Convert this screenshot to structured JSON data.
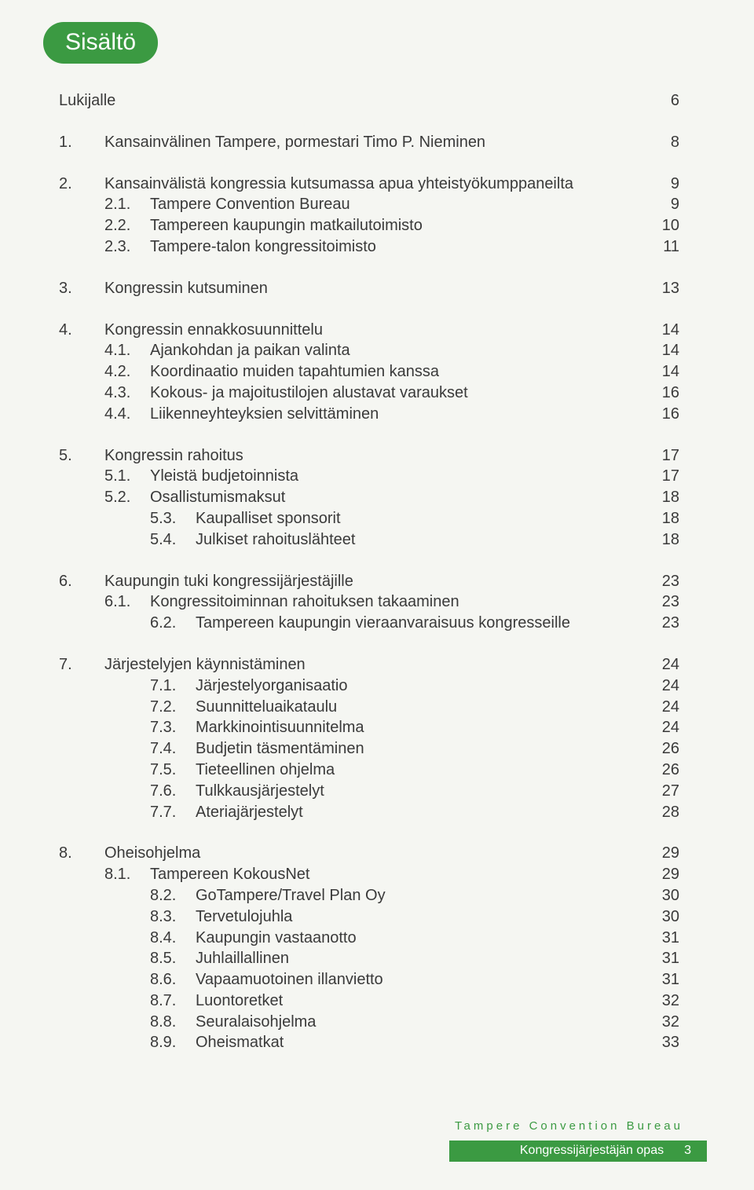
{
  "colors": {
    "accent": "#3b9a42",
    "text": "#3a3a3a",
    "background": "#f5f6f2"
  },
  "badge": "Sisältö",
  "toc": [
    {
      "rows": [
        {
          "title": "Lukijalle",
          "page": "6"
        }
      ]
    },
    {
      "rows": [
        {
          "num": "1.",
          "title": "Kansainvälinen Tampere, pormestari Timo P. Nieminen",
          "page": "8"
        }
      ]
    },
    {
      "rows": [
        {
          "num": "2.",
          "title": "Kansainvälistä kongressia kutsumassa apua yhteistyökumppaneilta",
          "page": "9"
        },
        {
          "indent": 1,
          "num": "2.1.",
          "title": "Tampere Convention Bureau",
          "page": "9"
        },
        {
          "indent": 1,
          "num": "2.2.",
          "title": "Tampereen kaupungin matkailutoimisto",
          "page": "10"
        },
        {
          "indent": 1,
          "num": "2.3.",
          "title": "Tampere-talon kongressitoimisto",
          "page": "11"
        }
      ]
    },
    {
      "rows": [
        {
          "num": "3.",
          "title": "Kongressin kutsuminen",
          "page": "13"
        }
      ]
    },
    {
      "rows": [
        {
          "num": "4.",
          "title": "Kongressin ennakkosuunnittelu",
          "page": "14"
        },
        {
          "indent": 1,
          "num": "4.1.",
          "title": "Ajankohdan ja paikan valinta",
          "page": "14"
        },
        {
          "indent": 1,
          "num": "4.2.",
          "title": "Koordinaatio muiden tapahtumien kanssa",
          "page": "14"
        },
        {
          "indent": 1,
          "num": "4.3.",
          "title": "Kokous- ja majoitustilojen alustavat varaukset",
          "page": "16"
        },
        {
          "indent": 1,
          "num": "4.4.",
          "title": "Liikenneyhteyksien selvittäminen",
          "page": "16"
        }
      ]
    },
    {
      "rows": [
        {
          "num": "5.",
          "title": "Kongressin rahoitus",
          "page": "17"
        },
        {
          "indent": 1,
          "num": "5.1.",
          "title": "Yleistä budjetoinnista",
          "page": "17"
        },
        {
          "indent": 1,
          "num": "5.2.",
          "title": "Osallistumismaksut",
          "page": "18"
        },
        {
          "indent": 2,
          "num": "5.3.",
          "title": "Kaupalliset sponsorit",
          "page": "18"
        },
        {
          "indent": 2,
          "num": "5.4.",
          "title": "Julkiset rahoituslähteet",
          "page": "18"
        }
      ]
    },
    {
      "rows": [
        {
          "num": "6.",
          "title": "Kaupungin tuki kongressijärjestäjille",
          "page": "23"
        },
        {
          "indent": 1,
          "num": "6.1.",
          "title": "Kongressitoiminnan rahoituksen takaaminen",
          "page": "23"
        },
        {
          "indent": 2,
          "num": "6.2.",
          "title": "Tampereen kaupungin vieraanvaraisuus kongresseille",
          "page": "23"
        }
      ]
    },
    {
      "rows": [
        {
          "num": "7.",
          "title": "Järjestelyjen käynnistäminen",
          "page": "24"
        },
        {
          "indent": 2,
          "num": "7.1.",
          "title": "Järjestelyorganisaatio",
          "page": "24"
        },
        {
          "indent": 2,
          "num": "7.2.",
          "title": "Suunnitteluaikataulu",
          "page": "24"
        },
        {
          "indent": 2,
          "num": "7.3.",
          "title": "Markkinointisuunnitelma",
          "page": "24"
        },
        {
          "indent": 2,
          "num": "7.4.",
          "title": "Budjetin täsmentäminen",
          "page": "26"
        },
        {
          "indent": 2,
          "num": "7.5.",
          "title": "Tieteellinen ohjelma",
          "page": "26"
        },
        {
          "indent": 2,
          "num": "7.6.",
          "title": "Tulkkausjärjestelyt",
          "page": "27"
        },
        {
          "indent": 2,
          "num": "7.7.",
          "title": "Ateriajärjestelyt",
          "page": "28"
        }
      ]
    },
    {
      "rows": [
        {
          "num": "8.",
          "title": "Oheisohjelma",
          "page": "29"
        },
        {
          "indent": 1,
          "num": "8.1.",
          "title": "Tampereen KokousNet",
          "page": "29"
        },
        {
          "indent": 2,
          "num": "8.2.",
          "title": "GoTampere/Travel Plan Oy",
          "page": "30"
        },
        {
          "indent": 2,
          "num": "8.3.",
          "title": "Tervetulojuhla",
          "page": "30"
        },
        {
          "indent": 2,
          "num": "8.4.",
          "title": "Kaupungin vastaanotto",
          "page": "31"
        },
        {
          "indent": 2,
          "num": "8.5.",
          "title": "Juhlaillallinen",
          "page": "31"
        },
        {
          "indent": 2,
          "num": "8.6.",
          "title": "Vapaamuotoinen illanvietto",
          "page": "31"
        },
        {
          "indent": 2,
          "num": "8.7.",
          "title": "Luontoretket",
          "page": "32"
        },
        {
          "indent": 2,
          "num": "8.8.",
          "title": "Seuralaisohjelma",
          "page": "32"
        },
        {
          "indent": 2,
          "num": "8.9.",
          "title": "Oheismatkat",
          "page": "33"
        }
      ]
    }
  ],
  "footer": {
    "top": "Tampere Convention Bureau",
    "bar_text": "Kongressijärjestäjän opas",
    "page": "3"
  }
}
